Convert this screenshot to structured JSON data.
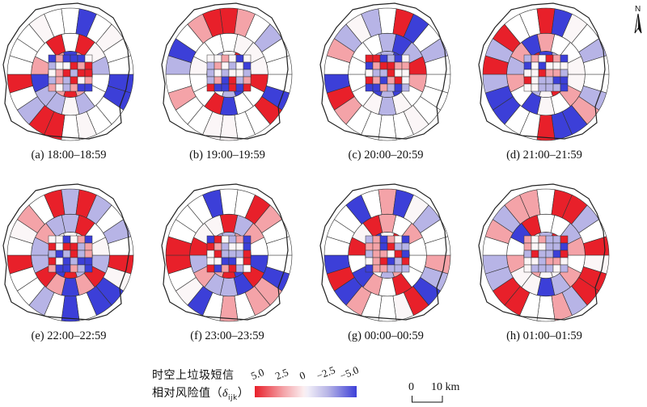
{
  "panels": [
    {
      "caption": "(a) 18:00–18:59",
      "seed": 11
    },
    {
      "caption": "(b) 19:00–19:59",
      "seed": 23
    },
    {
      "caption": "(c) 20:00–20:59",
      "seed": 37
    },
    {
      "caption": "(d) 21:00–21:59",
      "seed": 41
    },
    {
      "caption": "(e) 22:00–22:59",
      "seed": 53
    },
    {
      "caption": "(f) 23:00–23:59",
      "seed": 67
    },
    {
      "caption": "(g) 00:00–00:59",
      "seed": 79
    },
    {
      "caption": "(h) 01:00–01:59",
      "seed": 83
    }
  ],
  "north_label": "N",
  "legend": {
    "title_line1": "时空上垃圾短信",
    "title_line2": "相对风险值（",
    "title_symbol": "δ",
    "title_subscript": "ijk",
    "title_close": "）",
    "ticks": [
      "5.0",
      "2.5",
      "0",
      "−2.5",
      "−5.0"
    ],
    "colors": {
      "high": "#e8202a",
      "mid_high": "#f4a3a8",
      "neutral": "#fbf6f7",
      "mid_low": "#b7b4e6",
      "low": "#3c3fd8"
    }
  },
  "scale_bar": {
    "start": "0",
    "end": "10 km"
  }
}
